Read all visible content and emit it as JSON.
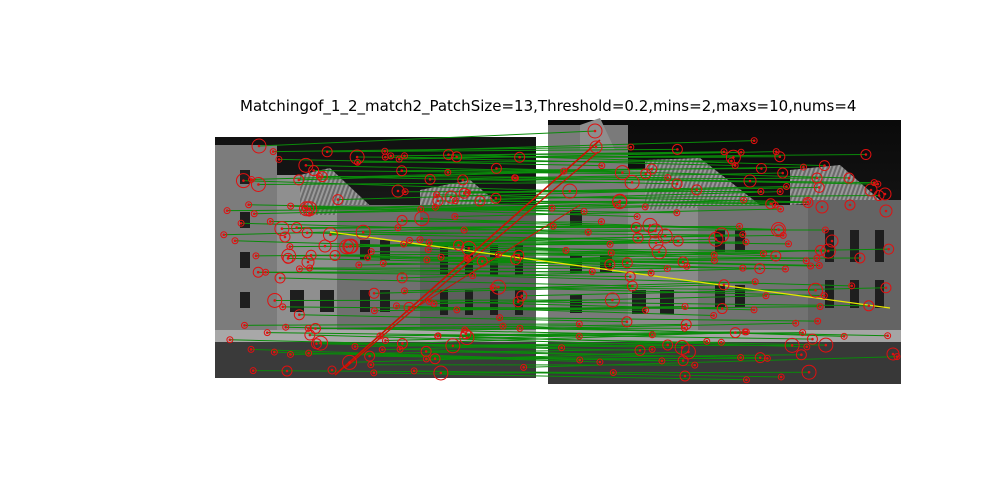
{
  "figure": {
    "title": "Matchingof_1_2_match2_PatchSize=13,Threshold=0.2,mins=2,maxs=10,nums=4"
  },
  "colors": {
    "inlier_line": "#0a8a0a",
    "outlier_line": "#cc1100",
    "highlight_line": "#e8e800",
    "keypoint": "#e01010",
    "photo_sky": "#0c0c0c",
    "photo_wall": "#8c8c8c"
  },
  "images": [
    {
      "name": "left-image",
      "description_icon": "building-facade-icon"
    },
    {
      "name": "right-image",
      "description_icon": "building-facade-icon"
    }
  ]
}
